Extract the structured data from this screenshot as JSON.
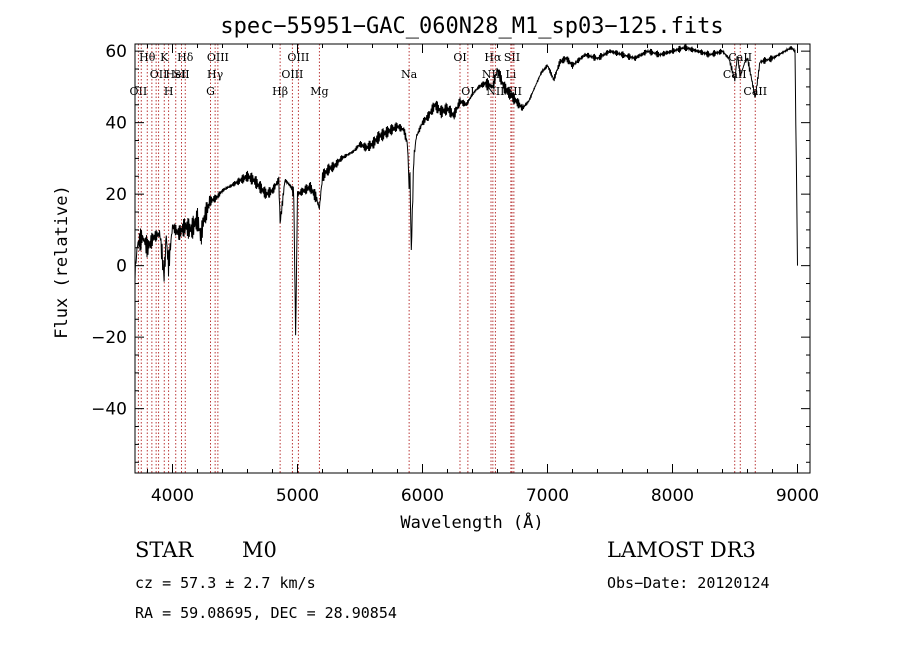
{
  "chart_data": {
    "type": "line",
    "title": "spec−55951−GAC_060N28_M1_sp03−125.fits",
    "xlabel": "Wavelength (Å)",
    "ylabel": "Flux (relative)",
    "xlim": [
      3700,
      9100
    ],
    "ylim": [
      -58,
      62
    ],
    "xticks": [
      4000,
      5000,
      6000,
      7000,
      8000,
      9000
    ],
    "yticks": [
      {
        "value": 60,
        "label": "60"
      },
      {
        "value": 40,
        "label": "40"
      },
      {
        "value": 20,
        "label": "20"
      },
      {
        "value": 0,
        "label": "0"
      },
      {
        "value": -20,
        "label": "−20"
      },
      {
        "value": -40,
        "label": "−40"
      }
    ],
    "series": [
      {
        "name": "spectrum",
        "x": [
          3700,
          3720,
          3760,
          3800,
          3850,
          3900,
          3933,
          3950,
          3968,
          4000,
          4050,
          4100,
          4150,
          4200,
          4227,
          4250,
          4300,
          4350,
          4400,
          4450,
          4500,
          4550,
          4600,
          4650,
          4700,
          4750,
          4800,
          4850,
          4861,
          4900,
          4950,
          4970,
          4985,
          5000,
          5050,
          5100,
          5150,
          5175,
          5200,
          5250,
          5300,
          5350,
          5400,
          5450,
          5500,
          5550,
          5600,
          5650,
          5700,
          5750,
          5800,
          5850,
          5880,
          5893,
          5900,
          5910,
          5930,
          5950,
          6000,
          6050,
          6100,
          6150,
          6200,
          6250,
          6300,
          6350,
          6400,
          6450,
          6500,
          6563,
          6600,
          6650,
          6700,
          6750,
          6800,
          6850,
          6900,
          6950,
          7000,
          7050,
          7100,
          7150,
          7200,
          7300,
          7400,
          7500,
          7600,
          7700,
          7800,
          7900,
          8000,
          8100,
          8200,
          8300,
          8400,
          8450,
          8498,
          8520,
          8542,
          8580,
          8600,
          8662,
          8700,
          8800,
          8850,
          8900,
          8950,
          8980,
          8990,
          9000
        ],
        "values": [
          -2,
          6,
          8,
          5,
          8,
          9,
          -3,
          8,
          0,
          11,
          9,
          11,
          10,
          13,
          8,
          13,
          18,
          19,
          21,
          22,
          23,
          24,
          25,
          24,
          22,
          20,
          21,
          24,
          12,
          24,
          22,
          20,
          -20,
          20,
          21,
          22,
          19,
          16,
          25,
          27,
          28,
          30,
          31,
          32,
          34,
          33,
          34,
          36,
          37,
          38,
          39,
          38,
          34,
          22,
          26,
          4,
          30,
          36,
          40,
          42,
          45,
          43,
          44,
          42,
          46,
          45,
          48,
          50,
          51,
          50,
          55,
          50,
          48,
          46,
          44,
          46,
          50,
          54,
          56,
          52,
          57,
          58,
          56,
          59,
          58,
          60,
          59,
          58,
          60,
          59,
          60,
          61,
          60,
          59,
          60,
          58,
          52,
          59,
          53,
          57,
          58,
          47,
          57,
          58,
          59,
          60,
          61,
          60,
          30,
          0
        ]
      }
    ],
    "lines": [
      {
        "wl": 3727,
        "labels": [
          "OII"
        ],
        "rows": [
          2
        ]
      },
      {
        "wl": 3750,
        "labels": [],
        "rows": []
      },
      {
        "wl": 3798,
        "labels": [
          "Hθ"
        ],
        "rows": [
          0
        ]
      },
      {
        "wl": 3835,
        "labels": [],
        "rows": []
      },
      {
        "wl": 3869,
        "labels": [],
        "rows": []
      },
      {
        "wl": 3889,
        "labels": [
          "OII"
        ],
        "rows": [
          1
        ]
      },
      {
        "wl": 3934,
        "labels": [
          "K"
        ],
        "rows": [
          0
        ]
      },
      {
        "wl": 3969,
        "labels": [
          "H"
        ],
        "rows": [
          2
        ]
      },
      {
        "wl": 4026,
        "labels": [
          "HeI"
        ],
        "rows": [
          1
        ]
      },
      {
        "wl": 4072,
        "labels": [
          "SII"
        ],
        "rows": [
          1
        ]
      },
      {
        "wl": 4102,
        "labels": [
          "Hδ"
        ],
        "rows": [
          0
        ]
      },
      {
        "wl": 4304,
        "labels": [
          "G"
        ],
        "rows": [
          2
        ]
      },
      {
        "wl": 4341,
        "labels": [
          "Hγ"
        ],
        "rows": [
          1
        ]
      },
      {
        "wl": 4363,
        "labels": [
          "OIII"
        ],
        "rows": [
          0
        ]
      },
      {
        "wl": 4861,
        "labels": [
          "Hβ"
        ],
        "rows": [
          2
        ]
      },
      {
        "wl": 4959,
        "labels": [
          "OIII"
        ],
        "rows": [
          1
        ]
      },
      {
        "wl": 5007,
        "labels": [
          "OIII"
        ],
        "rows": [
          0
        ]
      },
      {
        "wl": 5175,
        "labels": [
          "Mg"
        ],
        "rows": [
          2
        ]
      },
      {
        "wl": 5893,
        "labels": [
          "Na"
        ],
        "rows": [
          1
        ]
      },
      {
        "wl": 6300,
        "labels": [
          "OI"
        ],
        "rows": [
          0
        ]
      },
      {
        "wl": 6363,
        "labels": [
          "OI"
        ],
        "rows": [
          2
        ]
      },
      {
        "wl": 6548,
        "labels": [
          "NII"
        ],
        "rows": [
          1
        ]
      },
      {
        "wl": 6563,
        "labels": [
          "Hα"
        ],
        "rows": [
          0
        ]
      },
      {
        "wl": 6583,
        "labels": [
          "NII"
        ],
        "rows": [
          2
        ]
      },
      {
        "wl": 6707,
        "labels": [
          "Li"
        ],
        "rows": [
          1
        ]
      },
      {
        "wl": 6716,
        "labels": [
          "SII"
        ],
        "rows": [
          0
        ]
      },
      {
        "wl": 6731,
        "labels": [
          "SII"
        ],
        "rows": [
          2
        ]
      },
      {
        "wl": 8498,
        "labels": [
          "CaII"
        ],
        "rows": [
          1
        ]
      },
      {
        "wl": 8542,
        "labels": [
          "CaII"
        ],
        "rows": [
          0
        ]
      },
      {
        "wl": 8662,
        "labels": [
          "CaII"
        ],
        "rows": [
          2
        ]
      }
    ]
  },
  "info": {
    "class": "STAR",
    "subclass": "M0",
    "cz": "cz = 57.3 ± 2.7 km/s",
    "radec": "RA =  59.08695, DEC =  28.90854",
    "survey": "LAMOST DR3",
    "obsdate": "Obs−Date: 20120124"
  },
  "colors": {
    "line_marker": "#b22222",
    "spectrum": "#000000"
  }
}
